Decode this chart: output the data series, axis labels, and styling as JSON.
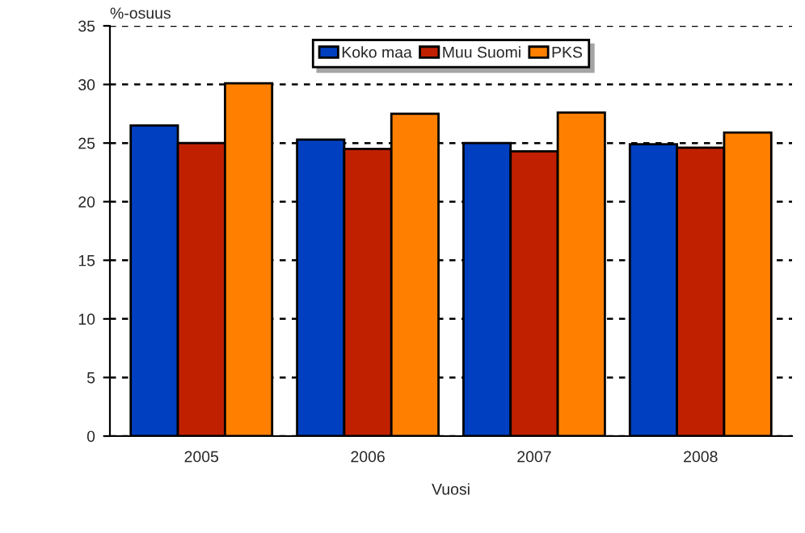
{
  "chart_data": {
    "type": "bar",
    "xlabel": "Vuosi",
    "ylabel": "%-osuus",
    "categories": [
      "2005",
      "2006",
      "2007",
      "2008"
    ],
    "series": [
      {
        "name": "Koko maa",
        "color": "#0040c0",
        "values": [
          26.5,
          25.3,
          25.0,
          24.9
        ]
      },
      {
        "name": "Muu Suomi",
        "color": "#c02000",
        "values": [
          25.0,
          24.5,
          24.3,
          24.6
        ]
      },
      {
        "name": "PKS",
        "color": "#ff8000",
        "values": [
          30.1,
          27.5,
          27.6,
          25.9
        ]
      }
    ],
    "ylim": [
      0,
      35
    ],
    "yticks": [
      0,
      5,
      10,
      15,
      20,
      25,
      30,
      35
    ],
    "grid": "y",
    "legend": "top"
  }
}
